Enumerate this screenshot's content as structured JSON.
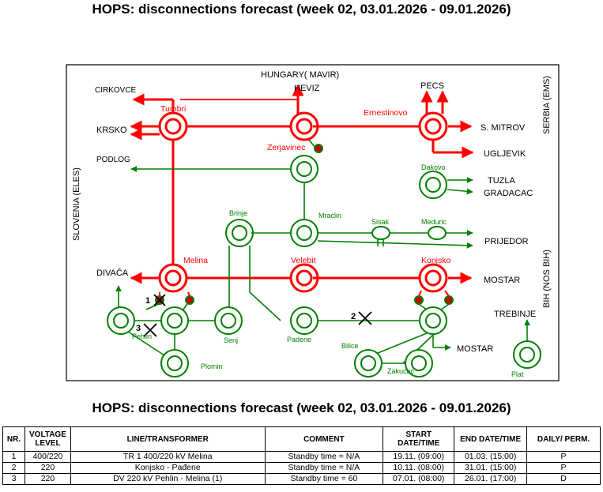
{
  "title": "HOPS: disconnections forecast (week 02, 03.01.2026 - 09.01.2026)",
  "colors": {
    "line_400": "#ff0000",
    "line_220": "#008000",
    "outage_mark": "#000000"
  },
  "map": {
    "regions": {
      "hungary": "HUNGARY( MAVIR)",
      "serbia": "SERBIA (EMS)",
      "slovenia": "SLOVENIA (ELES)",
      "bih": "BIH (NOS BIH)"
    },
    "stations": {
      "tumbri": "Tumbri",
      "zerjavinec": "Zerjavinec",
      "ernestinovo": "Ernestinovo",
      "melina": "Melina",
      "velebit": "Velebit",
      "konjsko": "Konjsko",
      "dakovo": "Dakovo",
      "brinje": "Brinje",
      "mraclin": "Mraclin",
      "sisak": "Sisak",
      "meduric": "Meduric",
      "pehlin": "Pehlin",
      "senj": "Senj",
      "padene": "Padene",
      "plomin": "Plomin",
      "bilice": "Bilice",
      "zakucac": "Zakucac",
      "plat": "Plat"
    },
    "destinations": {
      "cirkovce": "CIRKOVCE",
      "heviz": "HEVIZ",
      "krsko": "KRSKO",
      "pecs": "PECS",
      "s_mitrov": "S. MITROV",
      "ugljevik": "UGLJEVIK",
      "podlog": "PODLOG",
      "tuzla": "TUZLA",
      "gradacac": "GRADACAC",
      "prijedor": "PRIJEDOR",
      "divaca": "DIVAČA",
      "mostar_1": "MOSTAR",
      "trebinje": "TREBINJE",
      "mostar_2": "MOSTAR"
    },
    "outages": [
      {
        "nr": "1"
      },
      {
        "nr": "2"
      },
      {
        "nr": "3"
      }
    ]
  },
  "table": {
    "headers": {
      "nr": "NR.",
      "voltage_1": "VOLTAGE",
      "voltage_2": "LEVEL",
      "line": "LINE/TRANSFORMER",
      "comment": "COMMENT",
      "start_1": "START",
      "start_2": "DATE/TIME",
      "end": "END DATE/TIME",
      "daily": "DAILY/ PERM."
    },
    "rows": [
      {
        "nr": "1",
        "voltage": "400/220",
        "line": "TR 1 400/220 kV Melina",
        "comment": "Standby time = N/A",
        "start": "19.11. (09:00)",
        "end": "01.03. (15:00)",
        "daily": "P"
      },
      {
        "nr": "2",
        "voltage": "220",
        "line": "Konjsko - Pađene",
        "comment": "Standby time = N/A",
        "start": "10.11. (08:00)",
        "end": "31.01. (15:00)",
        "daily": "P"
      },
      {
        "nr": "3",
        "voltage": "220",
        "line": "DV 220 kV Pehlin - Melina (1)",
        "comment": "Standby time = 60",
        "start": "07.01. (08:00)",
        "end": "26.01. (17:00)",
        "daily": "D"
      }
    ]
  }
}
